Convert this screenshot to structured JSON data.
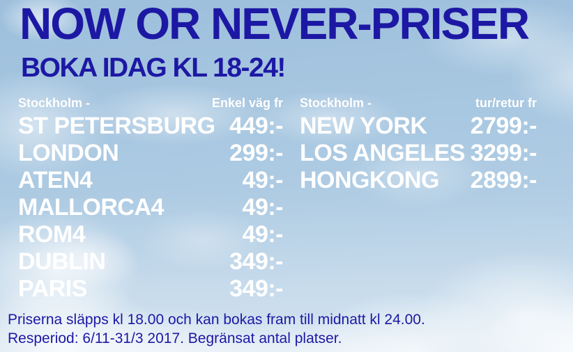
{
  "poster": {
    "headline": "NOW OR NEVER-PRISER",
    "subheadline": "BOKA IDAG KL 18-24!"
  },
  "fare_tables": [
    {
      "origin_label": "Stockholm -",
      "fare_type_label": "Enkel väg fr",
      "rows": [
        {
          "destination": "ST PETERSBURG",
          "price": "449:-"
        },
        {
          "destination": "LONDON",
          "price": "299:-"
        },
        {
          "destination": "ATEN4",
          "price": "49:-"
        },
        {
          "destination": "MALLORCA4",
          "price": "49:-"
        },
        {
          "destination": "ROM4",
          "price": "49:-"
        },
        {
          "destination": "DUBLIN",
          "price": "349:-"
        },
        {
          "destination": "PARIS",
          "price": "349:-"
        }
      ]
    },
    {
      "origin_label": "Stockholm -",
      "fare_type_label": "tur/retur fr",
      "rows": [
        {
          "destination": "NEW YORK",
          "price": "2799:-"
        },
        {
          "destination": "LOS ANGELES",
          "price": "3299:-"
        },
        {
          "destination": "HONGKONG",
          "price": "2899:-"
        }
      ]
    }
  ],
  "footer": {
    "line1": "Priserna släpps kl 18.00 och kan bokas fram till midnatt kl 24.00.",
    "line2": "Resperiod: 6/11-31/3 2017. Begränsat antal platser."
  },
  "colors": {
    "headline_blue": "#1d18a4",
    "list_text_white": "#ffffff"
  }
}
